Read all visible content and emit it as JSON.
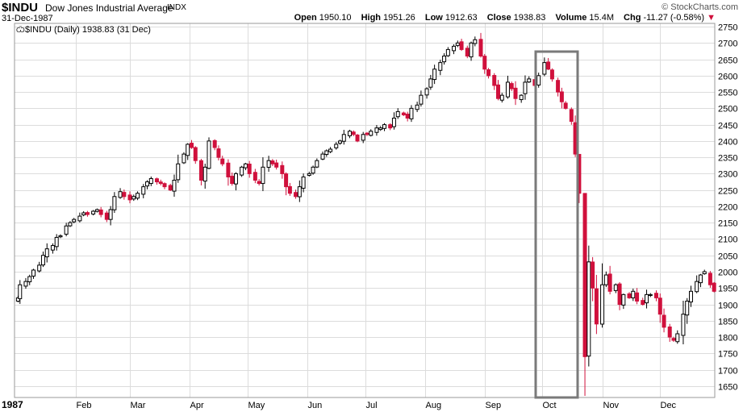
{
  "header": {
    "symbol": "$INDU",
    "name": "Dow Jones Industrial Average",
    "exchange": "INDX",
    "brand": "StockCharts.com",
    "date": "31-Dec-1987",
    "open_label": "Open",
    "open": "1950.10",
    "high_label": "High",
    "high": "1951.26",
    "low_label": "Low",
    "low": "1912.63",
    "close_label": "Close",
    "close": "1938.83",
    "volume_label": "Volume",
    "volume": "15.4M",
    "chg_label": "Chg",
    "chg": "-11.27 (-0.58%)",
    "chg_arrow": "▼"
  },
  "legend": {
    "label": "$INDU (Daily) 1938.83 (31 Dec)"
  },
  "colors": {
    "up": "#000000",
    "down": "#d0103c",
    "grid": "#dcdcdc",
    "highlight": "#7a7a7a"
  },
  "chart_data": {
    "type": "ohlc",
    "title": "$INDU (Daily) 1938.83 (31 Dec)",
    "ylim": [
      1615,
      2760
    ],
    "y_ticks": [
      1650,
      1700,
      1750,
      1800,
      1850,
      1900,
      1950,
      2000,
      2050,
      2100,
      2150,
      2200,
      2250,
      2300,
      2350,
      2400,
      2450,
      2500,
      2550,
      2600,
      2650,
      2700,
      2750
    ],
    "x_ticks": [
      {
        "label": "1987",
        "day": 0,
        "bold": true
      },
      {
        "label": "Feb",
        "day": 31
      },
      {
        "label": "Mar",
        "day": 59
      },
      {
        "label": "Apr",
        "day": 90
      },
      {
        "label": "May",
        "day": 120
      },
      {
        "label": "Jun",
        "day": 151
      },
      {
        "label": "Jul",
        "day": 181
      },
      {
        "label": "Aug",
        "day": 212
      },
      {
        "label": "Sep",
        "day": 243
      },
      {
        "label": "Oct",
        "day": 273
      },
      {
        "label": "Nov",
        "day": 304
      },
      {
        "label": "Dec",
        "day": 334
      }
    ],
    "grid": true,
    "closes": [
      [
        1,
        1920
      ],
      [
        2,
        1960
      ],
      [
        5,
        1970
      ],
      [
        7,
        1985
      ],
      [
        9,
        2005
      ],
      [
        12,
        2020
      ],
      [
        14,
        2050
      ],
      [
        16,
        2070
      ],
      [
        19,
        2080
      ],
      [
        21,
        2105
      ],
      [
        23,
        2110
      ],
      [
        26,
        2140
      ],
      [
        28,
        2150
      ],
      [
        30,
        2160
      ],
      [
        33,
        2170
      ],
      [
        35,
        2180
      ],
      [
        37,
        2175
      ],
      [
        40,
        2185
      ],
      [
        42,
        2190
      ],
      [
        44,
        2175
      ],
      [
        47,
        2160
      ],
      [
        49,
        2190
      ],
      [
        51,
        2230
      ],
      [
        54,
        2245
      ],
      [
        56,
        2230
      ],
      [
        59,
        2220
      ],
      [
        61,
        2230
      ],
      [
        63,
        2240
      ],
      [
        66,
        2260
      ],
      [
        68,
        2275
      ],
      [
        70,
        2285
      ],
      [
        73,
        2275
      ],
      [
        75,
        2270
      ],
      [
        77,
        2260
      ],
      [
        80,
        2250
      ],
      [
        82,
        2280
      ],
      [
        84,
        2330
      ],
      [
        87,
        2360
      ],
      [
        89,
        2390
      ],
      [
        91,
        2380
      ],
      [
        93,
        2340
      ],
      [
        96,
        2280
      ],
      [
        98,
        2320
      ],
      [
        100,
        2400
      ],
      [
        103,
        2380
      ],
      [
        105,
        2350
      ],
      [
        107,
        2330
      ],
      [
        110,
        2290
      ],
      [
        112,
        2270
      ],
      [
        114,
        2300
      ],
      [
        117,
        2320
      ],
      [
        119,
        2330
      ],
      [
        121,
        2300
      ],
      [
        124,
        2280
      ],
      [
        126,
        2270
      ],
      [
        128,
        2320
      ],
      [
        131,
        2340
      ],
      [
        133,
        2330
      ],
      [
        135,
        2320
      ],
      [
        138,
        2300
      ],
      [
        140,
        2260
      ],
      [
        142,
        2240
      ],
      [
        145,
        2230
      ],
      [
        147,
        2260
      ],
      [
        149,
        2290
      ],
      [
        152,
        2300
      ],
      [
        154,
        2320
      ],
      [
        156,
        2340
      ],
      [
        159,
        2360
      ],
      [
        161,
        2370
      ],
      [
        163,
        2375
      ],
      [
        166,
        2390
      ],
      [
        168,
        2400
      ],
      [
        170,
        2420
      ],
      [
        173,
        2430
      ],
      [
        175,
        2420
      ],
      [
        177,
        2400
      ],
      [
        180,
        2420
      ],
      [
        182,
        2420
      ],
      [
        184,
        2430
      ],
      [
        187,
        2440
      ],
      [
        189,
        2440
      ],
      [
        191,
        2450
      ],
      [
        194,
        2440
      ],
      [
        196,
        2470
      ],
      [
        198,
        2490
      ],
      [
        201,
        2480
      ],
      [
        203,
        2470
      ],
      [
        205,
        2500
      ],
      [
        208,
        2510
      ],
      [
        210,
        2540
      ],
      [
        213,
        2560
      ],
      [
        215,
        2590
      ],
      [
        217,
        2620
      ],
      [
        220,
        2640
      ],
      [
        222,
        2660
      ],
      [
        224,
        2680
      ],
      [
        227,
        2690
      ],
      [
        229,
        2700
      ],
      [
        231,
        2680
      ],
      [
        234,
        2660
      ],
      [
        236,
        2700
      ],
      [
        238,
        2710
      ],
      [
        241,
        2660
      ],
      [
        243,
        2620
      ],
      [
        245,
        2600
      ],
      [
        248,
        2570
      ],
      [
        250,
        2530
      ],
      [
        252,
        2540
      ],
      [
        255,
        2580
      ],
      [
        257,
        2560
      ],
      [
        259,
        2530
      ],
      [
        262,
        2540
      ],
      [
        264,
        2580
      ],
      [
        266,
        2590
      ],
      [
        269,
        2570
      ],
      [
        271,
        2600
      ],
      [
        274,
        2640
      ],
      [
        276,
        2620
      ],
      [
        278,
        2590
      ],
      [
        281,
        2550
      ],
      [
        283,
        2520
      ],
      [
        285,
        2500
      ],
      [
        288,
        2460
      ],
      [
        290,
        2360
      ],
      [
        292,
        2240
      ],
      [
        295,
        1740
      ],
      [
        297,
        2030
      ],
      [
        299,
        1950
      ],
      [
        301,
        1840
      ],
      [
        304,
        1960
      ],
      [
        306,
        1990
      ],
      [
        308,
        1940
      ],
      [
        311,
        1960
      ],
      [
        313,
        1900
      ],
      [
        315,
        1930
      ],
      [
        318,
        1920
      ],
      [
        320,
        1940
      ],
      [
        322,
        1910
      ],
      [
        325,
        1900
      ],
      [
        327,
        1930
      ],
      [
        329,
        1930
      ],
      [
        332,
        1920
      ],
      [
        334,
        1870
      ],
      [
        336,
        1830
      ],
      [
        339,
        1800
      ],
      [
        341,
        1790
      ],
      [
        343,
        1810
      ],
      [
        346,
        1870
      ],
      [
        348,
        1910
      ],
      [
        350,
        1940
      ],
      [
        353,
        1970
      ],
      [
        355,
        1990
      ],
      [
        357,
        2000
      ],
      [
        360,
        1960
      ],
      [
        362,
        1940
      ]
    ]
  }
}
